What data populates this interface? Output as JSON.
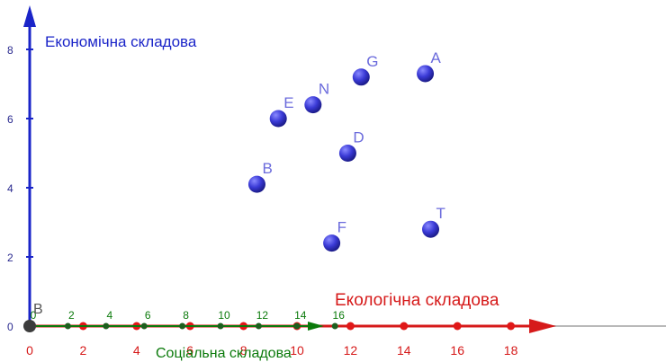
{
  "chart_data": {
    "type": "scatter",
    "axes": {
      "y": {
        "label": "Економічна складова",
        "color": "#1a24c8",
        "ticks": [
          "0",
          "2",
          "4",
          "6",
          "8"
        ],
        "tick_values": [
          0,
          2,
          4,
          6,
          8
        ]
      },
      "x": {
        "label": "Екологічна складова",
        "color": "#d61a1a",
        "ticks": [
          "0",
          "2",
          "4",
          "6",
          "8",
          "10",
          "12",
          "14",
          "16",
          "18"
        ],
        "tick_values": [
          0,
          2,
          4,
          6,
          8,
          10,
          12,
          14,
          16,
          18
        ]
      },
      "z": {
        "label": "Соціальна складова",
        "color": "#0b7a0b",
        "ticks": [
          "0",
          "2",
          "4",
          "6",
          "8",
          "10",
          "12",
          "14",
          "16"
        ],
        "tick_values": [
          0,
          2,
          4,
          6,
          8,
          10,
          12,
          14,
          16
        ]
      }
    },
    "origin_label": "B",
    "point_color": "#3a3ad6",
    "points": [
      {
        "name": "A",
        "x": 14.8,
        "y": 7.3
      },
      {
        "name": "G",
        "x": 12.4,
        "y": 7.2
      },
      {
        "name": "N",
        "x": 10.6,
        "y": 6.4
      },
      {
        "name": "E",
        "x": 9.3,
        "y": 6.0
      },
      {
        "name": "D",
        "x": 11.9,
        "y": 5.0
      },
      {
        "name": "B",
        "x": 8.5,
        "y": 4.1
      },
      {
        "name": "T",
        "x": 15.0,
        "y": 2.8
      },
      {
        "name": "F",
        "x": 11.3,
        "y": 2.4
      }
    ]
  }
}
